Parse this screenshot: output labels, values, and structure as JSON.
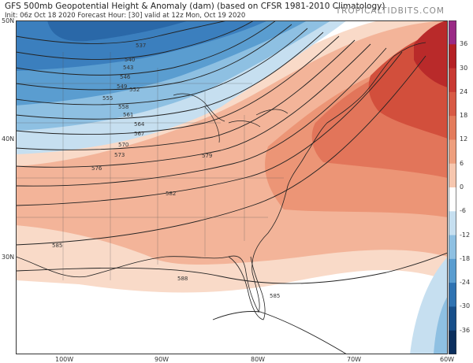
{
  "header": {
    "title": "GFS 500mb Geopotential Height & Anomaly (dam) (based on CFSR 1981-2010 Climatology)",
    "subtitle": "Init: 06z Oct 18 2020   Forecast Hour: [30]   valid at 12z Mon, Oct 19 2020",
    "brand": "TROPICALTIDBITS.COM"
  },
  "axes": {
    "lat_labels": [
      "50N",
      "40N",
      "30N"
    ],
    "lon_labels": [
      "100W",
      "90W",
      "80W",
      "70W",
      "60W"
    ]
  },
  "contour_labels": [
    "537",
    "540",
    "543",
    "546",
    "549",
    "552",
    "555",
    "558",
    "561",
    "564",
    "567",
    "570",
    "573",
    "576",
    "579",
    "582",
    "585",
    "588",
    "585"
  ],
  "colorbar": {
    "ticks": [
      "36",
      "30",
      "24",
      "18",
      "12",
      "6",
      "0",
      "-6",
      "-12",
      "-18",
      "-24",
      "-30",
      "-36"
    ],
    "colors": [
      "#9a2a86",
      "#b52024",
      "#c93a33",
      "#d85a45",
      "#e47c5c",
      "#ee9f7e",
      "#f7c7af",
      "#ffffff",
      "#c6dff0",
      "#8ec0e2",
      "#5a9dd0",
      "#2f73b2",
      "#174f8a",
      "#0b2f5e"
    ]
  }
}
